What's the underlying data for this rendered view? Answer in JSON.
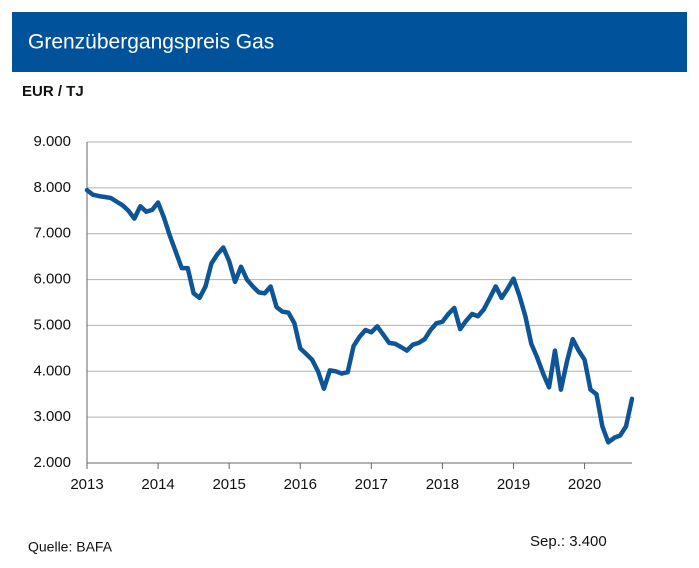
{
  "chart_data": {
    "type": "line",
    "title": "Grenzübergangspreis Gas",
    "y_label": "EUR / TJ",
    "source": "Quelle: BAFA",
    "annotation": "Sep.: 3.400",
    "x": [
      2013,
      2013.083,
      2013.167,
      2013.25,
      2013.333,
      2013.417,
      2013.5,
      2013.583,
      2013.667,
      2013.75,
      2013.833,
      2013.917,
      2014,
      2014.083,
      2014.167,
      2014.25,
      2014.333,
      2014.417,
      2014.5,
      2014.583,
      2014.667,
      2014.75,
      2014.833,
      2014.917,
      2015,
      2015.083,
      2015.167,
      2015.25,
      2015.333,
      2015.417,
      2015.5,
      2015.583,
      2015.667,
      2015.75,
      2015.833,
      2015.917,
      2016,
      2016.083,
      2016.167,
      2016.25,
      2016.333,
      2016.417,
      2016.5,
      2016.583,
      2016.667,
      2016.75,
      2016.833,
      2016.917,
      2017,
      2017.083,
      2017.167,
      2017.25,
      2017.333,
      2017.417,
      2017.5,
      2017.583,
      2017.667,
      2017.75,
      2017.833,
      2017.917,
      2018,
      2018.083,
      2018.167,
      2018.25,
      2018.333,
      2018.417,
      2018.5,
      2018.583,
      2018.667,
      2018.75,
      2018.833,
      2018.917,
      2019,
      2019.083,
      2019.167,
      2019.25,
      2019.333,
      2019.417,
      2019.5,
      2019.583,
      2019.667,
      2019.75,
      2019.833,
      2019.917,
      2020,
      2020.083,
      2020.167,
      2020.25,
      2020.333,
      2020.417,
      2020.5,
      2020.583,
      2020.667
    ],
    "series": [
      {
        "color": "#0e5597",
        "values": [
          7950,
          7850,
          7820,
          7800,
          7780,
          7700,
          7620,
          7500,
          7330,
          7600,
          7480,
          7520,
          7680,
          7350,
          6950,
          6600,
          6250,
          6250,
          5700,
          5600,
          5850,
          6350,
          6550,
          6700,
          6400,
          5950,
          6280,
          6000,
          5850,
          5720,
          5700,
          5850,
          5400,
          5300,
          5280,
          5050,
          4500,
          4380,
          4250,
          4000,
          3620,
          4020,
          4000,
          3950,
          3980,
          4550,
          4750,
          4900,
          4850,
          4980,
          4800,
          4620,
          4600,
          4530,
          4450,
          4580,
          4620,
          4700,
          4900,
          5050,
          5080,
          5250,
          5380,
          4920,
          5100,
          5250,
          5200,
          5350,
          5600,
          5850,
          5600,
          5800,
          6020,
          5650,
          5200,
          4600,
          4300,
          3950,
          3650,
          4450,
          3600,
          4200,
          4700,
          4450,
          4250,
          3600,
          3500,
          2800,
          2450,
          2550,
          2600,
          2800,
          3400
        ]
      }
    ],
    "xlim": [
      2013,
      2020.667
    ],
    "xticks": [
      2013,
      2014,
      2015,
      2016,
      2017,
      2018,
      2019,
      2020
    ],
    "ylim": [
      2000,
      9000
    ],
    "yticks": [
      {
        "value": 2000,
        "label": "2.000"
      },
      {
        "value": 3000,
        "label": "3.000"
      },
      {
        "value": 4000,
        "label": "4.000"
      },
      {
        "value": 5000,
        "label": "5.000"
      },
      {
        "value": 6000,
        "label": "6.000"
      },
      {
        "value": 7000,
        "label": "7.000"
      },
      {
        "value": 8000,
        "label": "8.000"
      },
      {
        "value": 9000,
        "label": "9.000"
      }
    ],
    "grid": true
  }
}
